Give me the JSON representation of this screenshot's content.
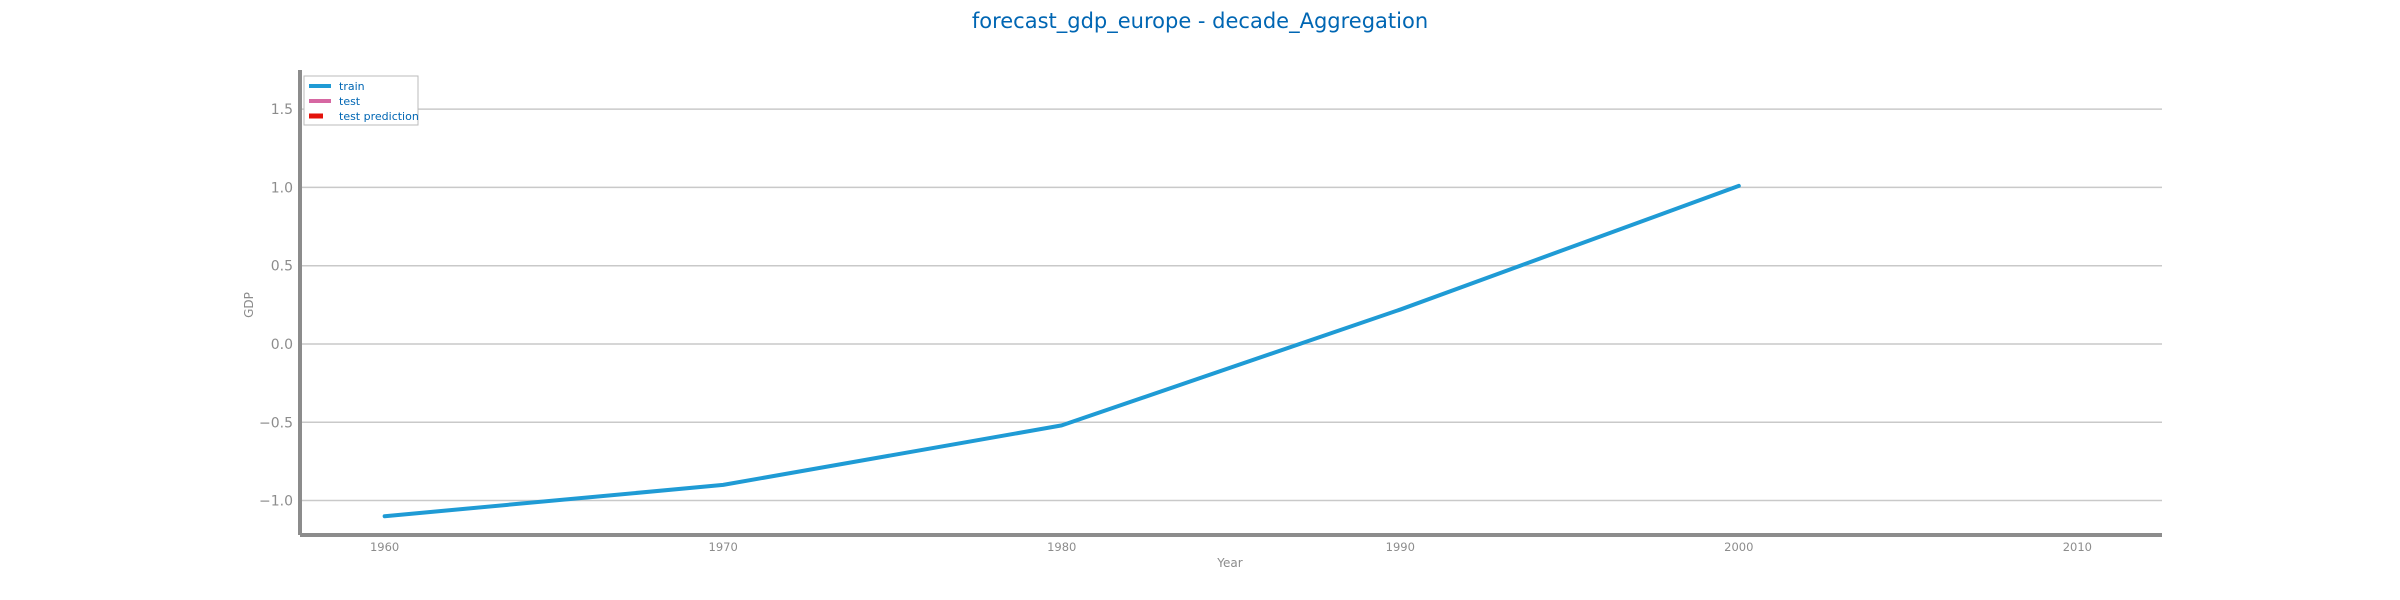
{
  "chart_data": {
    "type": "line",
    "title": "forecast_gdp_europe - decade_Aggregation",
    "xlabel": "Year",
    "ylabel": "GDP",
    "xlim": [
      1957.5,
      2012.5
    ],
    "ylim": [
      -1.22,
      1.75
    ],
    "x_ticks": [
      "1960",
      "1970",
      "1980",
      "1990",
      "2000",
      "2010"
    ],
    "y_ticks": [
      "−1.0",
      "−0.5",
      "0.0",
      "0.5",
      "1.0",
      "1.5"
    ],
    "grid": "horizontal",
    "legend_position": "top-left",
    "legend": [
      "train",
      "test",
      "test prediction"
    ],
    "series": [
      {
        "name": "train",
        "color": "#1f9bd5",
        "x": [
          1960,
          1970,
          1980,
          1990,
          2000
        ],
        "y": [
          -1.1,
          -0.9,
          -0.52,
          0.22,
          1.01
        ]
      },
      {
        "name": "test",
        "color": "#d667a2",
        "x": [],
        "y": []
      },
      {
        "name": "test prediction",
        "color": "#e3120b",
        "x": [],
        "y": []
      }
    ]
  }
}
